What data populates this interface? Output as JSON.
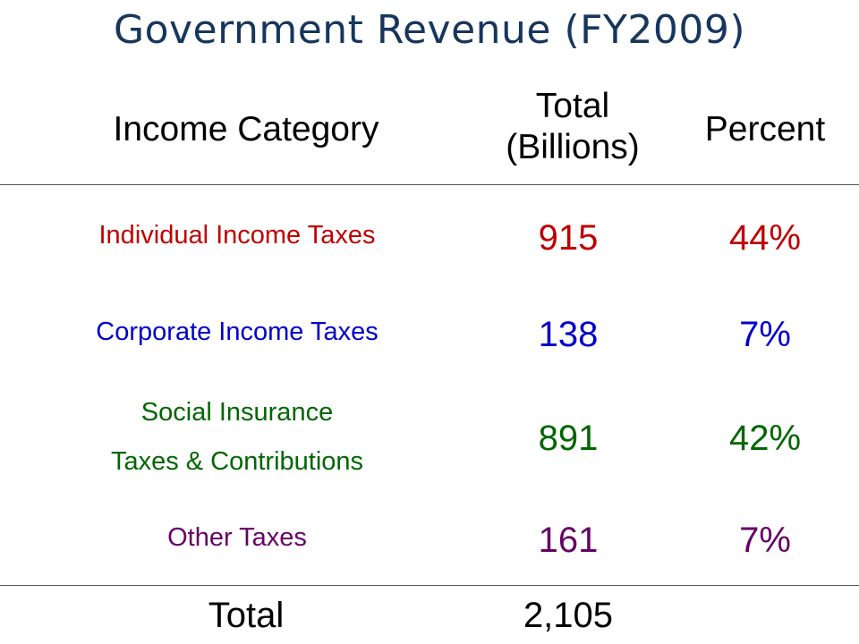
{
  "chart_data": {
    "type": "table",
    "title": "Government Revenue (FY2009)",
    "columns": {
      "category": "Income Category",
      "total_line1": "Total",
      "total_line2": "(Billions)",
      "percent": "Percent"
    },
    "rows": [
      {
        "category_lines": [
          "Individual Income Taxes"
        ],
        "total": "915",
        "percent": "44%",
        "color": "#c00000"
      },
      {
        "category_lines": [
          "Corporate Income Taxes"
        ],
        "total": "138",
        "percent": "7%",
        "color": "#0000cc"
      },
      {
        "category_lines": [
          "Social Insurance",
          "Taxes & Contributions"
        ],
        "total": "891",
        "percent": "42%",
        "color": "#006600"
      },
      {
        "category_lines": [
          "Other Taxes"
        ],
        "total": "161",
        "percent": "7%",
        "color": "#660066"
      }
    ],
    "total_row": {
      "label": "Total",
      "total": "2,105"
    }
  }
}
